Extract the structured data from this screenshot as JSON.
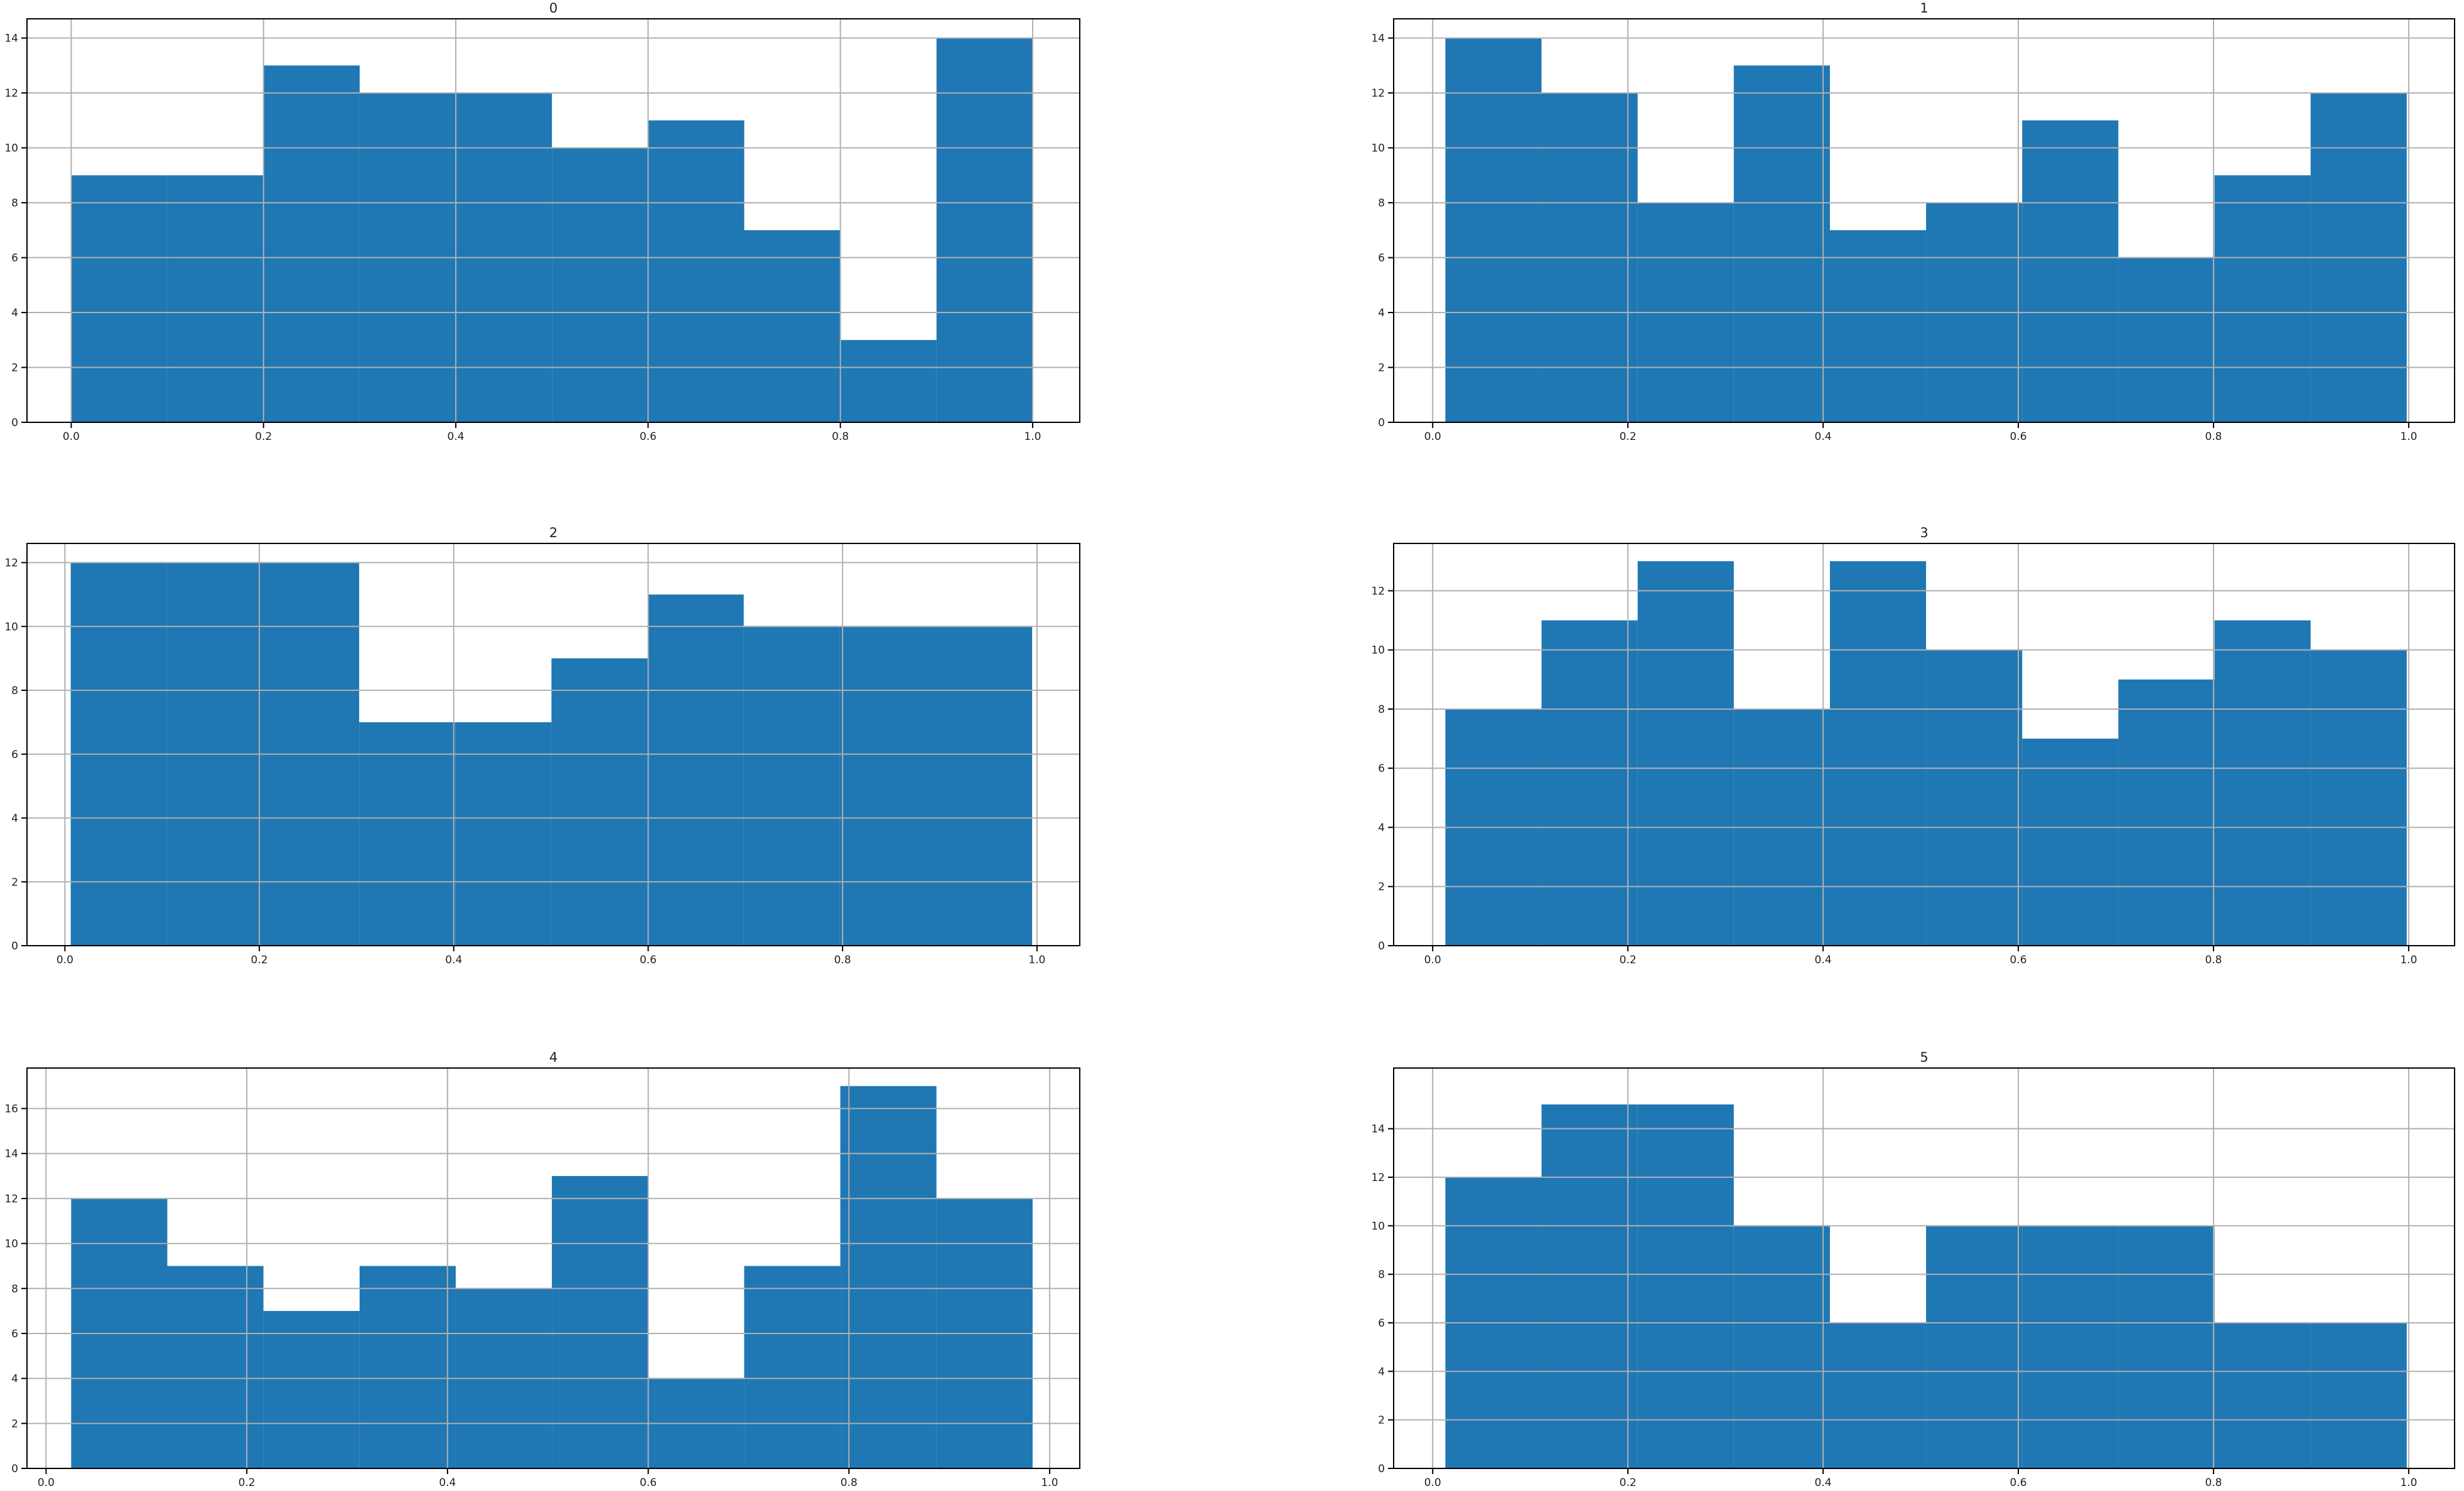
{
  "chart_data": [
    {
      "type": "histogram",
      "title": "0",
      "color": "#1f77b4",
      "grid": true,
      "bins": [
        0.0,
        0.1,
        0.2,
        0.3,
        0.4,
        0.5,
        0.6,
        0.7,
        0.8,
        0.9,
        1.0
      ],
      "values": [
        9,
        9,
        13,
        12,
        12,
        10,
        11,
        7,
        3,
        14
      ],
      "xlim": [
        -0.046,
        1.049
      ],
      "ylim": [
        0,
        14.7
      ],
      "xticks": [
        {
          "value": 0.0,
          "label": "0.0"
        },
        {
          "value": 0.2,
          "label": "0.2"
        },
        {
          "value": 0.4,
          "label": "0.4"
        },
        {
          "value": 0.6,
          "label": "0.6"
        },
        {
          "value": 0.8,
          "label": "0.8"
        },
        {
          "value": 1.0,
          "label": "1.0"
        }
      ],
      "yticks": [
        0,
        2,
        4,
        6,
        8,
        10,
        12,
        14
      ]
    },
    {
      "type": "histogram",
      "title": "1",
      "color": "#1f77b4",
      "grid": true,
      "bins": [
        0.013,
        0.1115,
        0.21,
        0.3085,
        0.407,
        0.5055,
        0.604,
        0.7025,
        0.801,
        0.8995,
        0.998
      ],
      "values": [
        14,
        12,
        8,
        13,
        7,
        8,
        11,
        6,
        9,
        12
      ],
      "xlim": [
        -0.04,
        1.047
      ],
      "ylim": [
        0,
        14.7
      ],
      "xticks": [
        {
          "value": 0.0,
          "label": "0.0"
        },
        {
          "value": 0.2,
          "label": "0.2"
        },
        {
          "value": 0.4,
          "label": "0.4"
        },
        {
          "value": 0.6,
          "label": "0.6"
        },
        {
          "value": 0.8,
          "label": "0.8"
        },
        {
          "value": 1.0,
          "label": "1.0"
        }
      ],
      "yticks": [
        0,
        2,
        4,
        6,
        8,
        10,
        12,
        14
      ]
    },
    {
      "type": "histogram",
      "title": "2",
      "color": "#1f77b4",
      "grid": true,
      "bins": [
        0.006,
        0.1049,
        0.2038,
        0.3027,
        0.4016,
        0.5005,
        0.5994,
        0.6983,
        0.7972,
        0.8961,
        0.995
      ],
      "values": [
        12,
        12,
        12,
        7,
        7,
        9,
        11,
        10,
        10,
        10
      ],
      "xlim": [
        -0.039,
        1.044
      ],
      "ylim": [
        0,
        12.6
      ],
      "xticks": [
        {
          "value": 0.0,
          "label": "0.0"
        },
        {
          "value": 0.2,
          "label": "0.2"
        },
        {
          "value": 0.4,
          "label": "0.4"
        },
        {
          "value": 0.6,
          "label": "0.6"
        },
        {
          "value": 0.8,
          "label": "0.8"
        },
        {
          "value": 1.0,
          "label": "1.0"
        }
      ],
      "yticks": [
        0,
        2,
        4,
        6,
        8,
        10,
        12
      ]
    },
    {
      "type": "histogram",
      "title": "3",
      "color": "#1f77b4",
      "grid": true,
      "bins": [
        0.013,
        0.1115,
        0.21,
        0.3085,
        0.407,
        0.5055,
        0.604,
        0.7025,
        0.801,
        0.8995,
        0.998
      ],
      "values": [
        8,
        11,
        13,
        8,
        13,
        10,
        7,
        9,
        11,
        10
      ],
      "xlim": [
        -0.04,
        1.047
      ],
      "ylim": [
        0,
        13.6
      ],
      "xticks": [
        {
          "value": 0.0,
          "label": "0.0"
        },
        {
          "value": 0.2,
          "label": "0.2"
        },
        {
          "value": 0.4,
          "label": "0.4"
        },
        {
          "value": 0.6,
          "label": "0.6"
        },
        {
          "value": 0.8,
          "label": "0.8"
        },
        {
          "value": 1.0,
          "label": "1.0"
        }
      ],
      "yticks": [
        0,
        2,
        4,
        6,
        8,
        10,
        12
      ]
    },
    {
      "type": "histogram",
      "title": "4",
      "color": "#1f77b4",
      "grid": true,
      "bins": [
        0.025,
        0.1208,
        0.2166,
        0.3124,
        0.4082,
        0.504,
        0.5998,
        0.6956,
        0.7914,
        0.8872,
        0.983
      ],
      "values": [
        12,
        9,
        7,
        9,
        8,
        13,
        4,
        9,
        17,
        12
      ],
      "xlim": [
        -0.019,
        1.03
      ],
      "ylim": [
        0,
        17.8
      ],
      "xticks": [
        {
          "value": 0.0,
          "label": "0.0"
        },
        {
          "value": 0.2,
          "label": "0.2"
        },
        {
          "value": 0.4,
          "label": "0.4"
        },
        {
          "value": 0.6,
          "label": "0.6"
        },
        {
          "value": 0.8,
          "label": "0.8"
        },
        {
          "value": 1.0,
          "label": "1.0"
        }
      ],
      "yticks": [
        0,
        2,
        4,
        6,
        8,
        10,
        12,
        14,
        16
      ]
    },
    {
      "type": "histogram",
      "title": "5",
      "color": "#1f77b4",
      "grid": true,
      "bins": [
        0.013,
        0.1115,
        0.21,
        0.3085,
        0.407,
        0.5055,
        0.604,
        0.7025,
        0.801,
        0.8995,
        0.998
      ],
      "values": [
        12,
        15,
        15,
        10,
        6,
        10,
        10,
        10,
        6,
        6
      ],
      "xlim": [
        -0.04,
        1.047
      ],
      "ylim": [
        0,
        16.5
      ],
      "xticks": [
        {
          "value": 0.0,
          "label": "0.0"
        },
        {
          "value": 0.2,
          "label": "0.2"
        },
        {
          "value": 0.4,
          "label": "0.4"
        },
        {
          "value": 0.6,
          "label": "0.6"
        },
        {
          "value": 0.8,
          "label": "0.8"
        },
        {
          "value": 1.0,
          "label": "1.0"
        }
      ],
      "yticks": [
        0,
        2,
        4,
        6,
        8,
        10,
        12,
        14
      ]
    }
  ]
}
